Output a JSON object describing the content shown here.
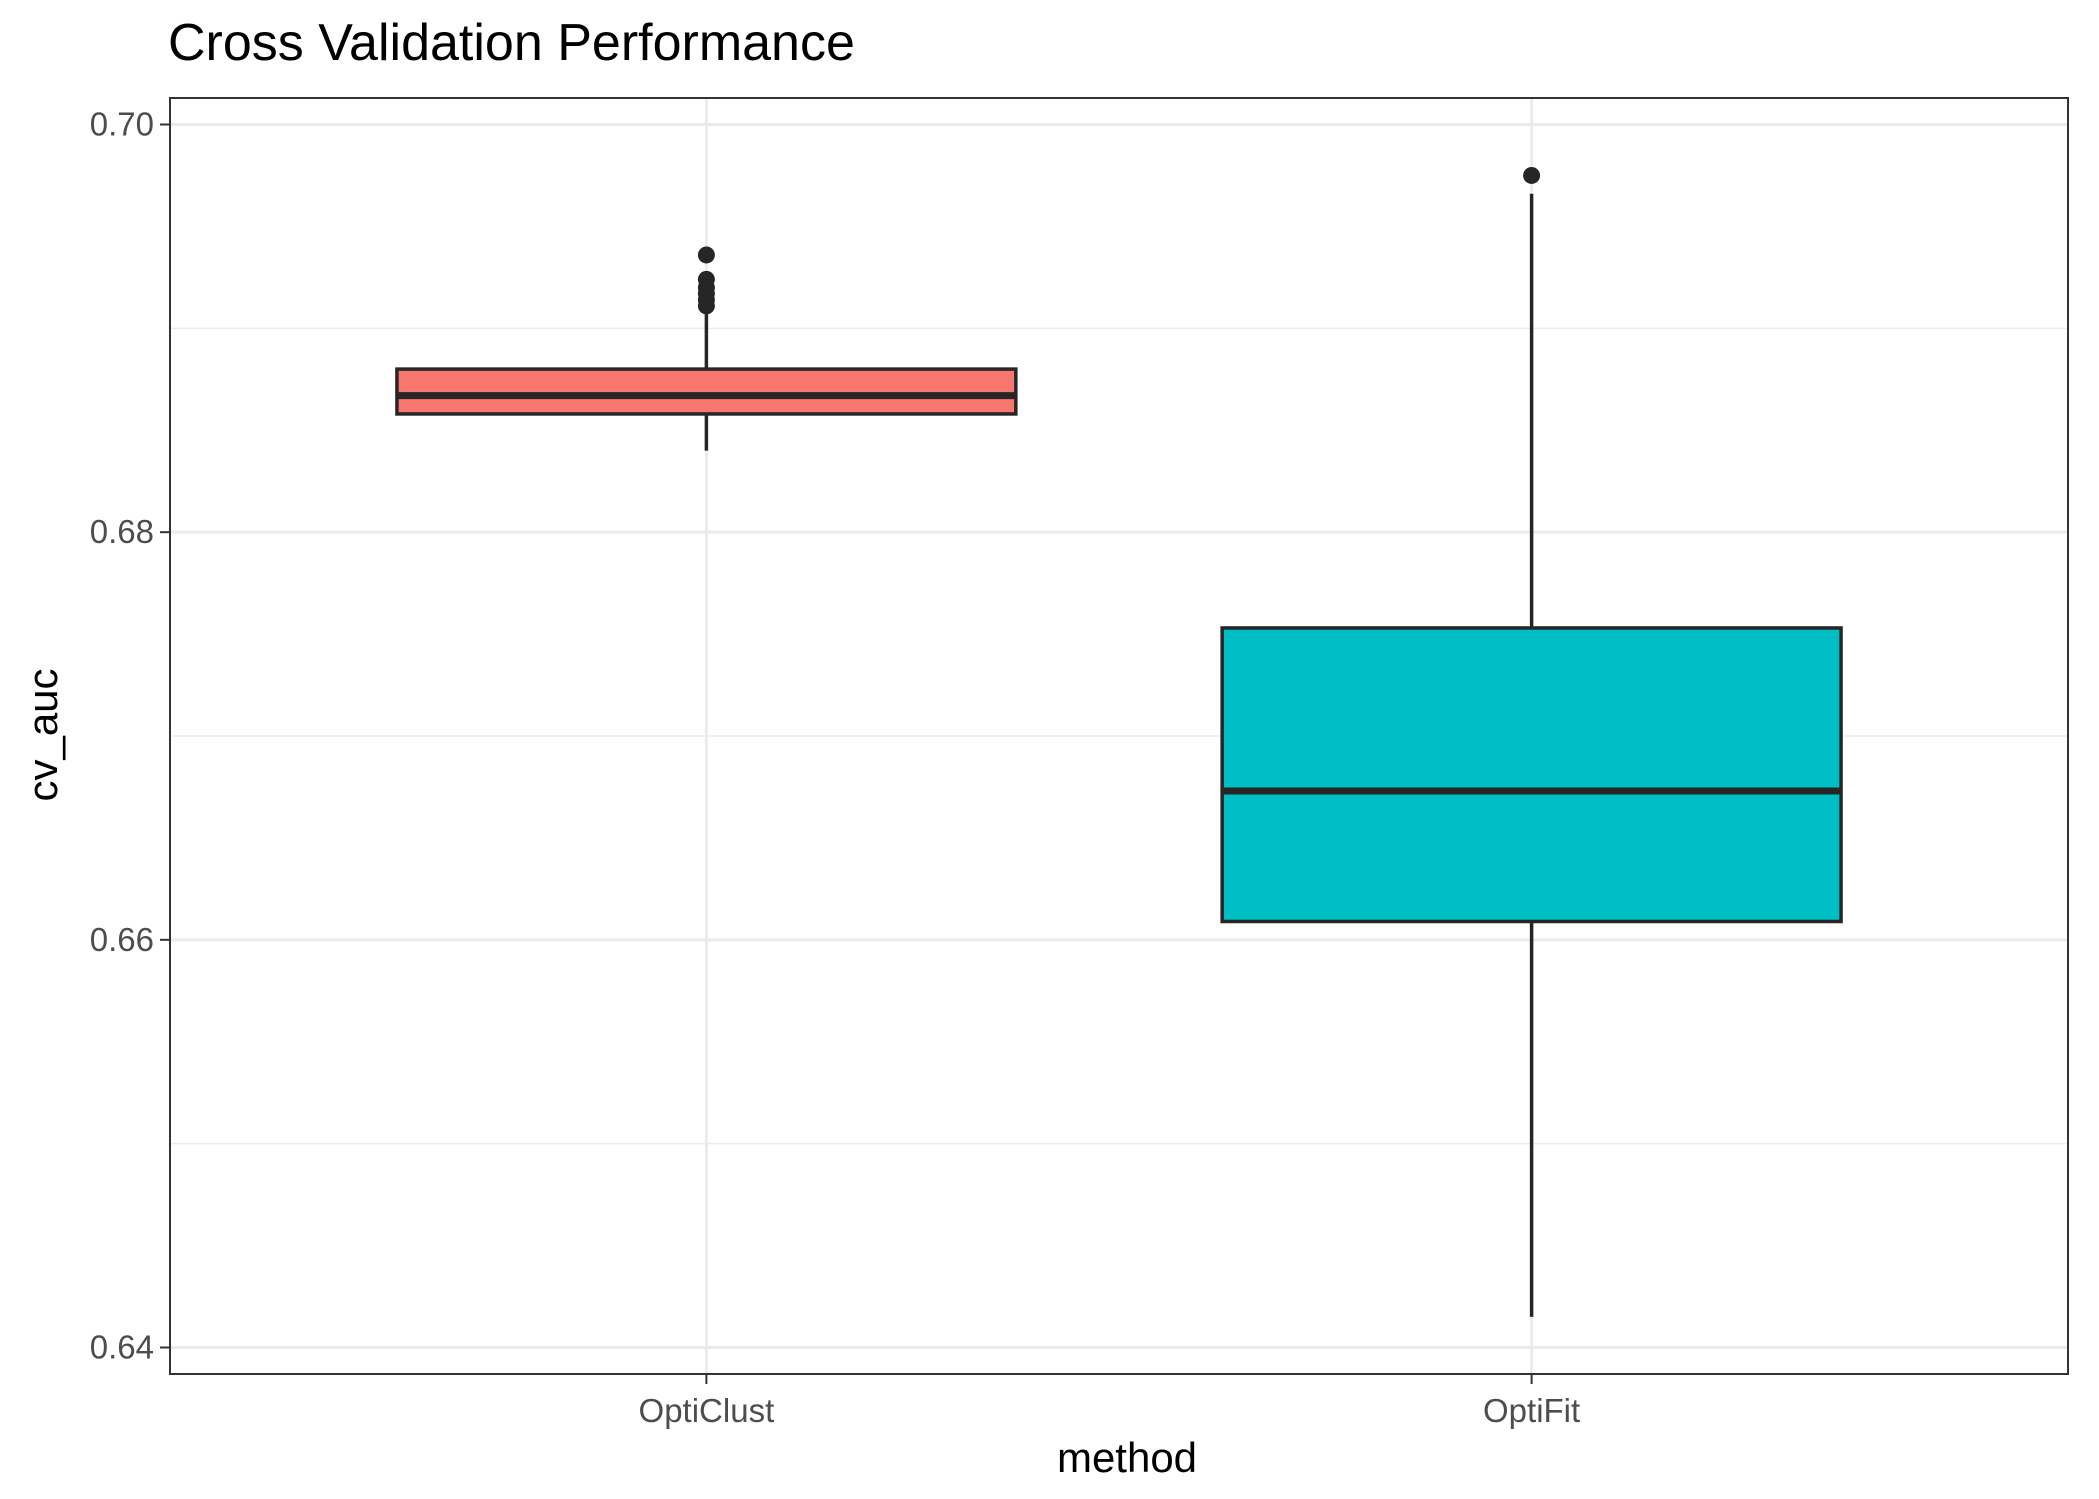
{
  "chart_data": {
    "type": "boxplot",
    "title": "Cross Validation Performance",
    "xlabel": "method",
    "ylabel": "cv_auc",
    "ylim": [
      0.6387,
      0.7013
    ],
    "yticks": [
      0.64,
      0.66,
      0.68,
      0.7
    ],
    "ytick_labels": [
      "0.64",
      "0.66",
      "0.68",
      "0.70"
    ],
    "grid": true,
    "legend": "none",
    "categories": [
      "OptiClust",
      "OptiFit"
    ],
    "colors": [
      "#f8766d",
      "#00bfc4"
    ],
    "boxes": [
      {
        "category": "OptiClust",
        "whisker_low": 0.684,
        "q1": 0.6858,
        "median": 0.6867,
        "q3": 0.688,
        "whisker_high": 0.6907,
        "outliers": [
          0.6936,
          0.6924,
          0.692,
          0.6917,
          0.6914,
          0.6911
        ]
      },
      {
        "category": "OptiFit",
        "whisker_low": 0.6415,
        "q1": 0.6609,
        "median": 0.6673,
        "q3": 0.6753,
        "whisker_high": 0.6966,
        "outliers": [
          0.6975
        ]
      }
    ]
  }
}
